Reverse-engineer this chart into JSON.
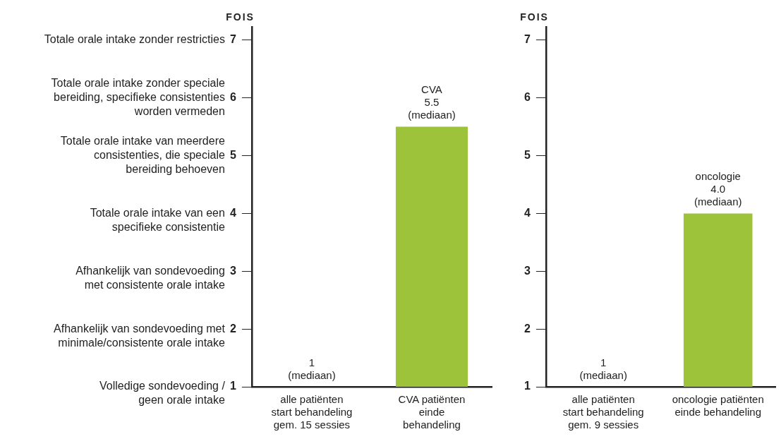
{
  "chart_data": [
    {
      "type": "bar",
      "title": "FOIS",
      "categories": [
        "alle patiënten\nstart behandeling\ngem. 15 sessies",
        "CVA patiënten\neinde\nbehandeling"
      ],
      "values": [
        1,
        5.5
      ],
      "value_labels": [
        "1\n(mediaan)",
        "CVA\n5.5\n(mediaan)"
      ],
      "color": "#9dc33b",
      "ylim": [
        1,
        7.23
      ],
      "yticks": [
        1,
        2,
        3,
        4,
        5,
        6,
        7
      ],
      "grid": false,
      "legend": false,
      "annotations": [
        "Totale orale intake zonder restricties",
        "Totale orale intake zonder speciale\nbereiding, specifieke consistenties\nworden vermeden",
        "Totale orale intake van meerdere\nconsistenties, die speciale\nbereiding behoeven",
        "Totale orale intake van een\nspecifieke consistentie",
        "Afhankelijk van sondevoeding\nmet consistente orale intake",
        "Afhankelijk van sondevoeding met\nminimale/consistente orale intake",
        "Volledige sondevoeding /\ngeen orale intake"
      ]
    },
    {
      "type": "bar",
      "title": "FOIS",
      "categories": [
        "alle patiënten\nstart behandeling\ngem. 9 sessies",
        "oncologie patiënten\neinde behandeling"
      ],
      "values": [
        1,
        4.0
      ],
      "value_labels": [
        "1\n(mediaan)",
        "oncologie\n4.0\n(mediaan)"
      ],
      "color": "#9dc33b",
      "ylim": [
        1,
        7.23
      ],
      "yticks": [
        1,
        2,
        3,
        4,
        5,
        6,
        7
      ],
      "grid": false,
      "legend": false
    }
  ]
}
